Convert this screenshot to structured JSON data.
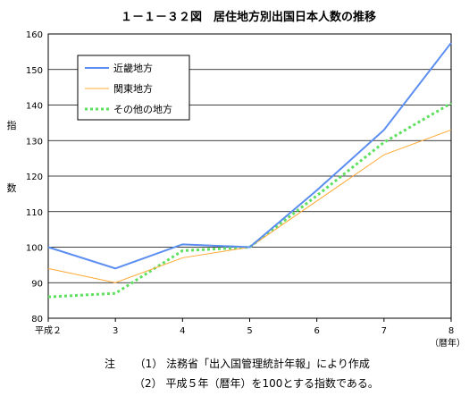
{
  "chart_data": {
    "type": "line",
    "title": "１－１－３２図　居住地方別出国日本人数の推移",
    "ylabel": [
      "指",
      "数"
    ],
    "xunit": "（暦年）",
    "categories": [
      "平成２",
      "3",
      "4",
      "5",
      "6",
      "7",
      "8"
    ],
    "ylim": [
      80,
      160
    ],
    "yticks": [
      80,
      90,
      100,
      110,
      120,
      130,
      140,
      150,
      160
    ],
    "grid": true,
    "legend_position": "top-left",
    "series": [
      {
        "name": "近畿地方",
        "values": [
          100,
          94,
          100.8,
          100,
          116,
          133,
          157.5
        ],
        "color": "#5b8ef0",
        "style": "solid"
      },
      {
        "name": "関東地方",
        "values": [
          94,
          90,
          97,
          100,
          113,
          126,
          133
        ],
        "color": "#ffa832",
        "style": "solid"
      },
      {
        "name": "その他の地方",
        "values": [
          86,
          87,
          99,
          100,
          114.5,
          129.5,
          140.5
        ],
        "color": "#5ee05e",
        "style": "dotted"
      }
    ]
  },
  "notes": [
    {
      "marker": "注",
      "num": "（1）",
      "text": "法務省「出入国管理統計年報」により作成"
    },
    {
      "marker": "",
      "num": "（2）",
      "text": "平成５年（暦年）を100とする指数である。"
    }
  ]
}
